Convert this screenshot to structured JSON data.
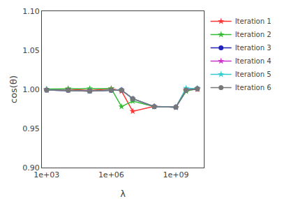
{
  "chart_data": {
    "type": "line",
    "x": [
      1000.0,
      10000.0,
      100000.0,
      1000000.0,
      3000000.0,
      10000000.0,
      100000000.0,
      1000000000.0,
      3000000000.0,
      10000000000.0
    ],
    "series": [
      {
        "name": "Iteration 1",
        "color": "#ff3333",
        "marker": "star",
        "values": [
          0.9995,
          1.0005,
          0.9985,
          1.001,
          0.9978,
          0.972,
          0.9783,
          0.9772,
          0.999,
          1.0
        ]
      },
      {
        "name": "Iteration 2",
        "color": "#33bb33",
        "marker": "star",
        "values": [
          1.0005,
          1.001,
          1.001,
          1.001,
          0.978,
          0.985,
          0.978,
          0.9772,
          0.9975,
          1.001
        ]
      },
      {
        "name": "Iteration 3",
        "color": "#2222bb",
        "marker": "circle",
        "values": [
          0.9992,
          0.9988,
          0.9978,
          0.9988,
          0.9992,
          0.988,
          0.978,
          0.9772,
          0.999,
          1.001
        ]
      },
      {
        "name": "Iteration 4",
        "color": "#cc33cc",
        "marker": "star",
        "values": [
          0.9992,
          0.9988,
          0.9978,
          0.9988,
          0.9992,
          0.988,
          0.978,
          0.9772,
          0.9995,
          1.001
        ]
      },
      {
        "name": "Iteration 5",
        "color": "#33cccc",
        "marker": "star",
        "values": [
          0.9992,
          0.9988,
          0.9978,
          0.9988,
          0.9992,
          0.988,
          0.978,
          0.9772,
          1.0015,
          1.001
        ]
      },
      {
        "name": "Iteration 6",
        "color": "#777777",
        "marker": "circle",
        "values": [
          0.9992,
          0.9988,
          0.9978,
          0.9988,
          0.9992,
          0.988,
          0.978,
          0.9772,
          0.999,
          1.001
        ]
      }
    ],
    "x_label": "λ",
    "y_label": "cos(θ)",
    "log": "x",
    "xlim": [
      600.0,
      20000000000.0
    ],
    "xticks": [
      {
        "value": 1000.0,
        "label": "1e+03"
      },
      {
        "value": 1000000.0,
        "label": "1e+06"
      },
      {
        "value": 1000000000.0,
        "label": "1e+09"
      }
    ],
    "ylim": [
      0.9,
      1.1
    ],
    "yticks": [
      {
        "value": 0.9,
        "label": "0.90"
      },
      {
        "value": 0.95,
        "label": "0.95"
      },
      {
        "value": 1.0,
        "label": "1.00"
      },
      {
        "value": 1.05,
        "label": "1.05"
      },
      {
        "value": 1.1,
        "label": "1.10"
      }
    ],
    "grid": false,
    "legend": "upper right"
  }
}
